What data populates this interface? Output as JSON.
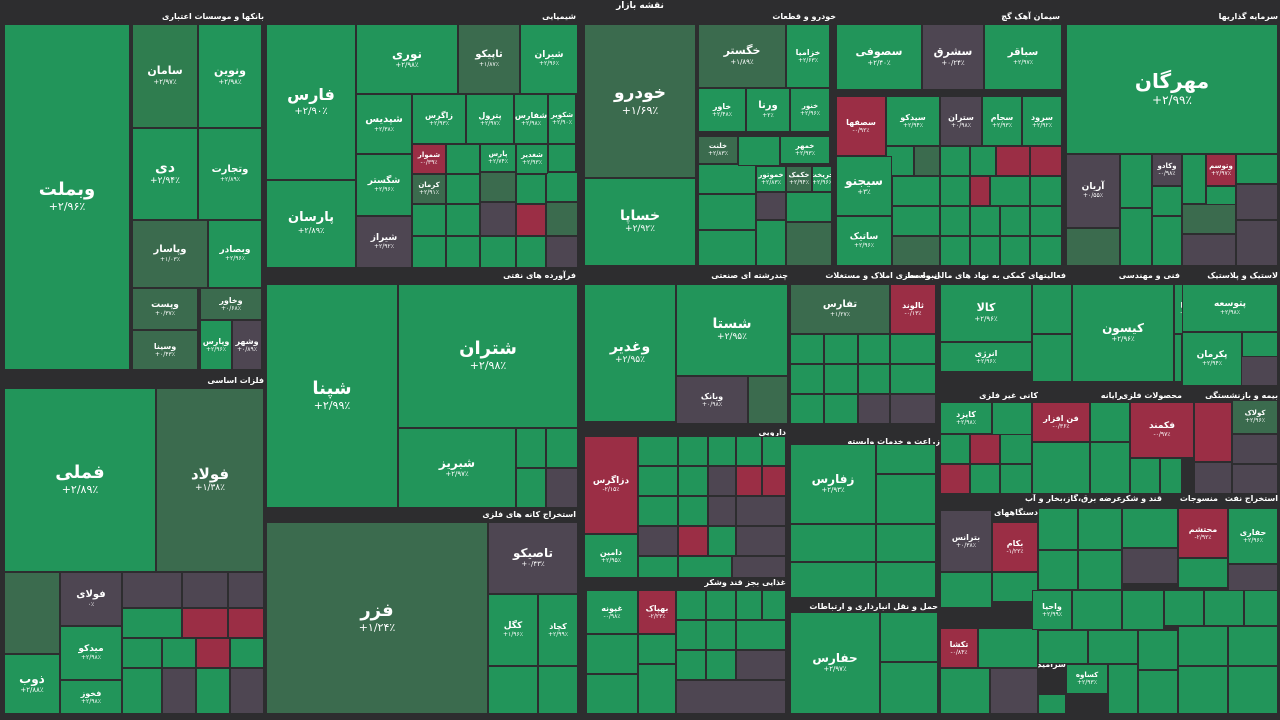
{
  "title": "نقشه بازار",
  "colors": {
    "up_strong": "#22955a",
    "up": "#2f7d4f",
    "up_light": "#3b6b4e",
    "flat": "#4e4652",
    "down": "#9b2e45",
    "background": "#2d2d2f"
  },
  "sectors": [
    {
      "label": "بانکها و موسسات اعتباری"
    },
    {
      "label": "شیمیایی"
    },
    {
      "label": "خودرو و قطعات"
    },
    {
      "label": "سیمان آهک گچ"
    },
    {
      "label": "سرمایه گذاریها"
    },
    {
      "label": "فلزات اساسی"
    },
    {
      "label": "فرآورده های نفتی"
    },
    {
      "label": "استخراج کانه های فلزی"
    },
    {
      "label": "چندرشته ای صنعتی"
    },
    {
      "label": "انبوه سازی املاک و مستغلات"
    },
    {
      "label": "فعالیتهای کمکی به نهاد های مالی واسط"
    },
    {
      "label": "فنی و مهندسی"
    },
    {
      "label": "لاستیک و پلاستیک"
    },
    {
      "label": "دارویی"
    },
    {
      "label": "زراعت و خدمات وابسته"
    },
    {
      "label": "کانی غیر فلزی"
    },
    {
      "label": "رایانه"
    },
    {
      "label": "محصولات فلزی"
    },
    {
      "label": "بیمه و بازنشستگی"
    },
    {
      "label": "غذایی بجز قند وشکر"
    },
    {
      "label": "حمل و نقل انبارداری و ارتباطات"
    },
    {
      "label": "دستگاههای برقی"
    },
    {
      "label": "عرضه برق،گاز،بخار و آب"
    },
    {
      "label": "قند و شکر"
    },
    {
      "label": "منسوجات"
    },
    {
      "label": "استخراج نفت"
    },
    {
      "label": "واسطه گریهای مالی و پولی"
    },
    {
      "label": "ماشین آلات و تجهیزات"
    },
    {
      "label": "محصولات"
    },
    {
      "label": "هتل و"
    },
    {
      "label": "سایر"
    },
    {
      "label": "کاشی و سرامیک"
    },
    {
      "label": "اطلاعات و"
    }
  ],
  "tiles": [
    {
      "name": "وبملت",
      "value": "+۲/۹۶٪"
    },
    {
      "name": "سامان",
      "value": "+۲/۹۷٪"
    },
    {
      "name": "ونوین",
      "value": "+۲/۹۸٪"
    },
    {
      "name": "دی",
      "value": "+۲/۹۴٪"
    },
    {
      "name": "وتجارت",
      "value": "+۲/۸۹٪"
    },
    {
      "name": "وپاسار",
      "value": "+۱/۰۳٪"
    },
    {
      "name": "وبصادر",
      "value": "+۲/۹۶٪"
    },
    {
      "name": "وپست",
      "value": "+۰/۳۷٪"
    },
    {
      "name": "وخاور",
      "value": "+۰/۶۸٪"
    },
    {
      "name": "وسینا",
      "value": "+۰/۴۳٪"
    },
    {
      "name": "وپارس",
      "value": "+۲/۹۶٪"
    },
    {
      "name": "وشهر",
      "value": "+۰/۸۹٪"
    },
    {
      "name": "فارس",
      "value": "+۲/۹۰٪"
    },
    {
      "name": "نوری",
      "value": "+۲/۹۸٪"
    },
    {
      "name": "تاپیکو",
      "value": "+۱/۸۷٪"
    },
    {
      "name": "شیران",
      "value": "+۲/۹۶٪"
    },
    {
      "name": "شپدیس",
      "value": "+۲/۳۸٪"
    },
    {
      "name": "زاگرس",
      "value": "+۲/۹۳٪"
    },
    {
      "name": "پترول",
      "value": "+۲/۹۷٪"
    },
    {
      "name": "شفارس",
      "value": "+۲/۹۸٪"
    },
    {
      "name": "شکویر",
      "value": "+۲/۹۰٪"
    },
    {
      "name": "شغدیر",
      "value": "+۲/۹۳٪"
    },
    {
      "name": "پارسان",
      "value": "+۲/۸۹٪"
    },
    {
      "name": "شگستر",
      "value": "+۲/۹۶٪"
    },
    {
      "name": "شیراز",
      "value": "+۲/۹۲٪"
    },
    {
      "name": "شموار",
      "value": "-۰/۳۹٪"
    },
    {
      "name": "کرمان",
      "value": "+۲/۹۱٪"
    },
    {
      "name": "پارس",
      "value": "+۲/۷۴٪"
    },
    {
      "name": "خودرو",
      "value": "+۱/۶۹٪"
    },
    {
      "name": "خگستر",
      "value": "+۱/۸۹٪"
    },
    {
      "name": "خزامیا",
      "value": "+۲/۶۳٪"
    },
    {
      "name": "خساپا",
      "value": "+۲/۹۲٪"
    },
    {
      "name": "ورنا",
      "value": "+۲٪"
    },
    {
      "name": "خاور",
      "value": "+۲/۴۸٪"
    },
    {
      "name": "خنور",
      "value": "+۲/۹۶٪"
    },
    {
      "name": "خکمک",
      "value": "+۲/۹۴٪"
    },
    {
      "name": "خمهر",
      "value": "+۲/۹۳٪"
    },
    {
      "name": "خریخت",
      "value": "+۲/۹۶٪"
    },
    {
      "name": "خلنت",
      "value": "+۲/۸۳٪"
    },
    {
      "name": "خموتور",
      "value": "+۲/۸۳٪"
    },
    {
      "name": "سصوفی",
      "value": "+۲/۴۰٪"
    },
    {
      "name": "سشرق",
      "value": "+۰/۲۴٪"
    },
    {
      "name": "سباقر",
      "value": "+۲/۹۷٪"
    },
    {
      "name": "سصفها",
      "value": "-۰/۹۲٪"
    },
    {
      "name": "سیدکو",
      "value": "+۲/۹۴٪"
    },
    {
      "name": "ستران",
      "value": "+۰/۹۸٪"
    },
    {
      "name": "سجام",
      "value": "+۲/۹۳٪"
    },
    {
      "name": "سرود",
      "value": "+۲/۹۲٪"
    },
    {
      "name": "سیجنو",
      "value": "+۳٪"
    },
    {
      "name": "ساتیک",
      "value": "+۲/۹۶٪"
    },
    {
      "name": "مهرگان",
      "value": "+۲/۹۹٪"
    },
    {
      "name": "آریان",
      "value": "+۰/۵۵٪"
    },
    {
      "name": "وکادو",
      "value": "-۰/۹۸٪"
    },
    {
      "name": "وتوسم",
      "value": "+۲/۹۷٪"
    },
    {
      "name": "فملی",
      "value": "+۲/۸۹٪"
    },
    {
      "name": "فولاد",
      "value": "+۱/۳۸٪"
    },
    {
      "name": "فولای",
      "value": "۰٪"
    },
    {
      "name": "فخاس",
      "value": "+۲/۹۳٪"
    },
    {
      "name": "میدکو",
      "value": "+۲/۹۸٪"
    },
    {
      "name": "ذوب",
      "value": "+۲/۸۸٪"
    },
    {
      "name": "فخوز",
      "value": "+۲/۹۸٪"
    },
    {
      "name": "شپنا",
      "value": "+۲/۹۹٪"
    },
    {
      "name": "شتران",
      "value": "+۲/۹۸٪"
    },
    {
      "name": "شبریز",
      "value": "+۲/۹۷٪"
    },
    {
      "name": "فزر",
      "value": "+۱/۲۴٪"
    },
    {
      "name": "تاصیکو",
      "value": "+۰/۴۳٪"
    },
    {
      "name": "کگل",
      "value": "+۱/۹۶٪"
    },
    {
      "name": "کچاد",
      "value": "+۲/۹۹٪"
    },
    {
      "name": "وغدیر",
      "value": "+۲/۹۵٪"
    },
    {
      "name": "شستا",
      "value": "+۲/۹۵٪"
    },
    {
      "name": "وبانک",
      "value": "+۰/۹۸٪"
    },
    {
      "name": "تفارس",
      "value": "+۱/۲۷٪"
    },
    {
      "name": "ثالوند",
      "value": "-۰/۱۳٪"
    },
    {
      "name": "کالا",
      "value": "+۲/۹۶٪"
    },
    {
      "name": "انرژی",
      "value": "+۲/۹۶٪"
    },
    {
      "name": "کیسون",
      "value": "+۲/۹۶٪"
    },
    {
      "name": "رمپنا",
      "value": "+۲/۹۸٪"
    },
    {
      "name": "پتوسعه",
      "value": "+۲/۹۸٪"
    },
    {
      "name": "پکرمان",
      "value": "+۲/۹۴٪"
    },
    {
      "name": "دزاگرس",
      "value": "-۲/۱۵٪"
    },
    {
      "name": "دامین",
      "value": "+۲/۹۵٪"
    },
    {
      "name": "زفارس",
      "value": "+۲/۹۳٪"
    },
    {
      "name": "کایزد",
      "value": "+۲/۹۸٪"
    },
    {
      "name": "فن افزار",
      "value": "-۰/۳۶٪"
    },
    {
      "name": "فکمند",
      "value": "-۰/۹۷٪"
    },
    {
      "name": "غپونه",
      "value": "-۰/۹۸٪"
    },
    {
      "name": "بهپاک",
      "value": "-۲/۲۳٪"
    },
    {
      "name": "حفارس",
      "value": "+۲/۹۷٪"
    },
    {
      "name": "بترانس",
      "value": "+۰/۳۸٪"
    },
    {
      "name": "بکام",
      "value": "-۱/۲۲٪"
    },
    {
      "name": "محتشم",
      "value": "-۲/۹۲٪"
    },
    {
      "name": "حفاری",
      "value": "+۲/۹۶٪"
    },
    {
      "name": "واحیا",
      "value": "+۲/۹۹٪"
    },
    {
      "name": "تکشا",
      "value": "-۰/۸۴٪"
    },
    {
      "name": "کساوه",
      "value": "+۲/۹۳٪"
    },
    {
      "name": "کولاک",
      "value": "+۲/۹۶٪"
    }
  ]
}
